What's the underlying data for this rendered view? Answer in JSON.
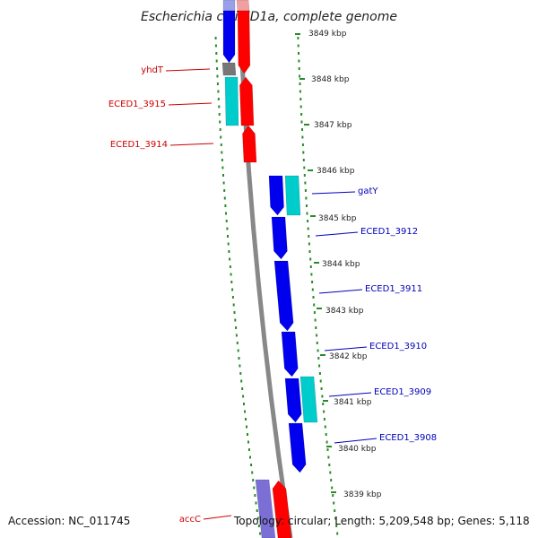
{
  "title": "Escherichia coli ED1a, complete genome",
  "footer": {
    "accession": "Accession: NC_011745",
    "stats": "Topology: circular; Length: 5,209,548 bp; Genes: 5,118"
  },
  "colors": {
    "backbone": "#888888",
    "dots": "#2a8a2a",
    "forward_gene": "#ff0000",
    "reverse_gene": "#0000ee",
    "rna_gene": "#00cccc",
    "faded_reverse": "#7b6fd6",
    "label_left": "#cc0000",
    "label_right": "#0000bb"
  },
  "scale_ticks_kbp": [
    {
      "value": 3849,
      "label": "3849 kbp"
    },
    {
      "value": 3848,
      "label": "3848 kbp"
    },
    {
      "value": 3847,
      "label": "3847 kbp"
    },
    {
      "value": 3846,
      "label": "3846 kbp"
    },
    {
      "value": 3845,
      "label": "3845 kbp"
    },
    {
      "value": 3844,
      "label": "3844 kbp"
    },
    {
      "value": 3843,
      "label": "3843 kbp"
    },
    {
      "value": 3842,
      "label": "3842 kbp"
    },
    {
      "value": 3841,
      "label": "3841 kbp"
    },
    {
      "value": 3840,
      "label": "3840 kbp"
    },
    {
      "value": 3839,
      "label": "3839 kbp"
    }
  ],
  "labels_left": [
    "yhdT",
    "ECED1_3915",
    "ECED1_3914",
    "accC"
  ],
  "labels_right": [
    "gatY",
    "ECED1_3912",
    "ECED1_3911",
    "ECED1_3910",
    "ECED1_3909",
    "ECED1_3908"
  ]
}
